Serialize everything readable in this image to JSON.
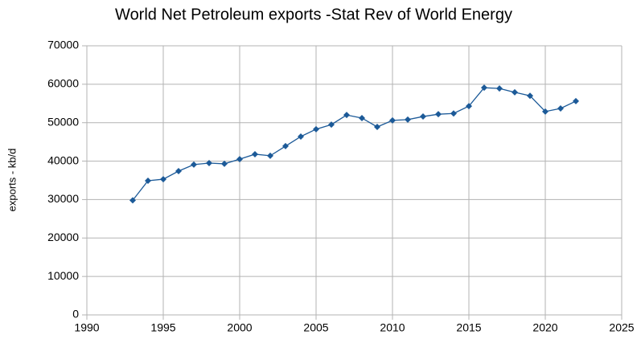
{
  "chart_data": {
    "type": "line",
    "title": "World Net Petroleum exports -Stat Rev of World Energy",
    "y_label": "exports - kb/d",
    "x": [
      1993,
      1994,
      1995,
      1996,
      1997,
      1998,
      1999,
      2000,
      2001,
      2002,
      2003,
      2004,
      2005,
      2006,
      2007,
      2008,
      2009,
      2010,
      2011,
      2012,
      2013,
      2014,
      2015,
      2016,
      2017,
      2018,
      2019,
      2020,
      2021,
      2022
    ],
    "series": [
      {
        "name": "exports",
        "color": "#1c5a98",
        "values": [
          29800,
          34900,
          35300,
          37400,
          39100,
          39500,
          39300,
          40500,
          41800,
          41400,
          43900,
          46400,
          48300,
          49500,
          52000,
          51200,
          48900,
          50600,
          50800,
          51600,
          52200,
          52400,
          54300,
          59100,
          58900,
          57900,
          57000,
          52900,
          53700,
          55600
        ]
      }
    ],
    "xlim": [
      1990,
      2025
    ],
    "xticks": [
      1990,
      1995,
      2000,
      2005,
      2010,
      2015,
      2020,
      2025
    ],
    "ylim": [
      0,
      70000
    ],
    "yticks": [
      0,
      10000,
      20000,
      30000,
      40000,
      50000,
      60000,
      70000
    ],
    "grid": true
  }
}
